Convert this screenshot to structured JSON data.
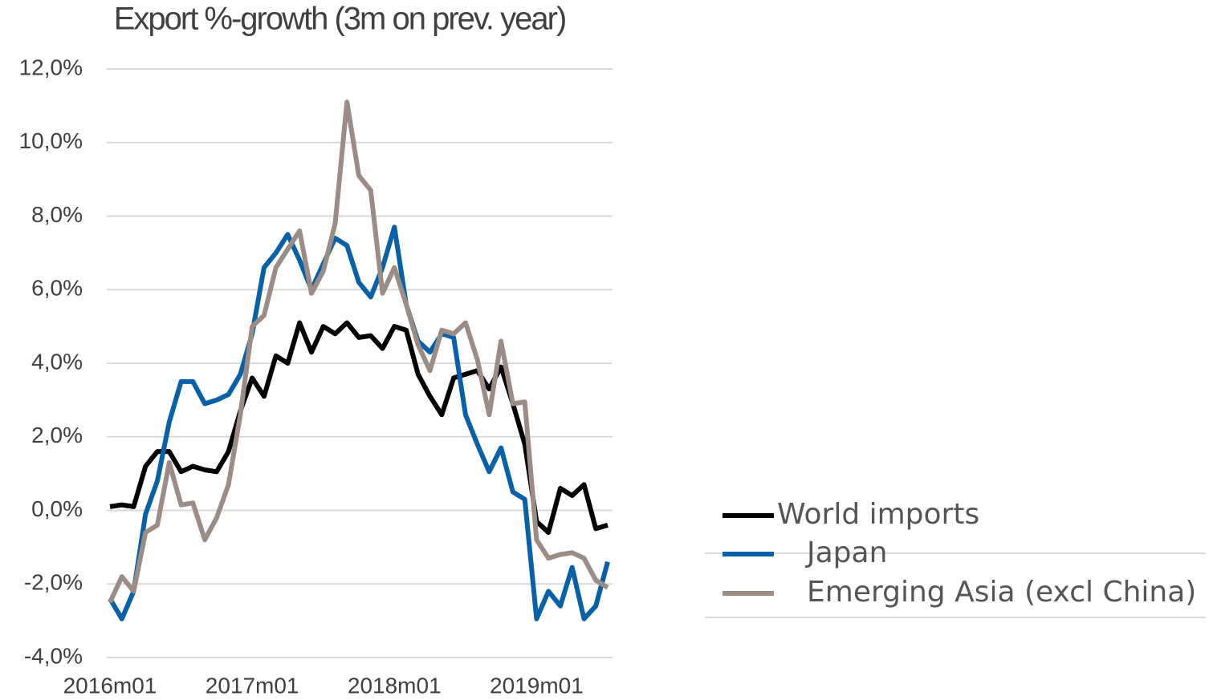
{
  "chart_data": {
    "type": "line",
    "title": "Export %-growth (3m on prev. year)",
    "categories": [
      "2016m01",
      null,
      null,
      null,
      null,
      null,
      null,
      null,
      null,
      null,
      null,
      null,
      "2017m01",
      null,
      null,
      null,
      null,
      null,
      null,
      null,
      null,
      null,
      null,
      null,
      "2018m01",
      null,
      null,
      null,
      null,
      null,
      null,
      null,
      null,
      null,
      null,
      null,
      "2019m01",
      null,
      null,
      null,
      null,
      null,
      null
    ],
    "series": [
      {
        "name": "World imports",
        "color": "#000000",
        "values": [
          0.1,
          0.15,
          0.1,
          1.2,
          1.6,
          1.6,
          1.05,
          1.2,
          1.1,
          1.05,
          1.6,
          2.7,
          3.6,
          3.1,
          4.2,
          4.0,
          5.1,
          4.3,
          5.0,
          4.8,
          5.1,
          4.7,
          4.75,
          4.4,
          5.0,
          4.9,
          3.7,
          3.1,
          2.6,
          3.6,
          3.7,
          3.8,
          3.3,
          3.9,
          2.9,
          1.8,
          -0.3,
          -0.6,
          0.6,
          0.4,
          0.7,
          -0.5,
          -0.4
        ]
      },
      {
        "name": "Japan",
        "color": "#0860a8",
        "values": [
          -2.4,
          -2.95,
          -2.2,
          -0.1,
          0.8,
          2.4,
          3.5,
          3.5,
          2.9,
          3.0,
          3.15,
          3.7,
          4.8,
          6.6,
          7.0,
          7.5,
          6.8,
          6.0,
          6.7,
          7.4,
          7.2,
          6.2,
          5.8,
          6.6,
          7.7,
          5.6,
          4.6,
          4.3,
          4.8,
          4.7,
          2.6,
          1.8,
          1.05,
          1.7,
          0.5,
          0.3,
          -2.95,
          -2.2,
          -2.6,
          -1.55,
          -2.95,
          -2.6,
          -1.4
        ]
      },
      {
        "name": "Emerging Asia (excl China)",
        "color": "#9c8c86",
        "values": [
          -2.5,
          -1.8,
          -2.2,
          -0.6,
          -0.4,
          1.3,
          0.15,
          0.2,
          -0.8,
          -0.2,
          0.7,
          2.6,
          5.0,
          5.3,
          6.6,
          7.1,
          7.6,
          5.9,
          6.5,
          7.8,
          11.1,
          9.1,
          8.7,
          5.9,
          6.6,
          5.6,
          4.5,
          3.8,
          4.9,
          4.8,
          5.1,
          4.1,
          2.6,
          4.6,
          2.9,
          2.95,
          -0.8,
          -1.3,
          -1.2,
          -1.15,
          -1.3,
          -1.9,
          -2.1
        ]
      }
    ],
    "ylim": [
      -4,
      12
    ],
    "yticks": [
      {
        "value": -4,
        "label": "-4,0%"
      },
      {
        "value": -2,
        "label": "-2,0%"
      },
      {
        "value": 0,
        "label": "0,0%"
      },
      {
        "value": 2,
        "label": "2,0%"
      },
      {
        "value": 4,
        "label": "4,0%"
      },
      {
        "value": 6,
        "label": "6,0%"
      },
      {
        "value": 8,
        "label": "8,0%"
      },
      {
        "value": 10,
        "label": "10,0%"
      },
      {
        "value": 12,
        "label": "12,0%"
      }
    ],
    "grid": true
  }
}
